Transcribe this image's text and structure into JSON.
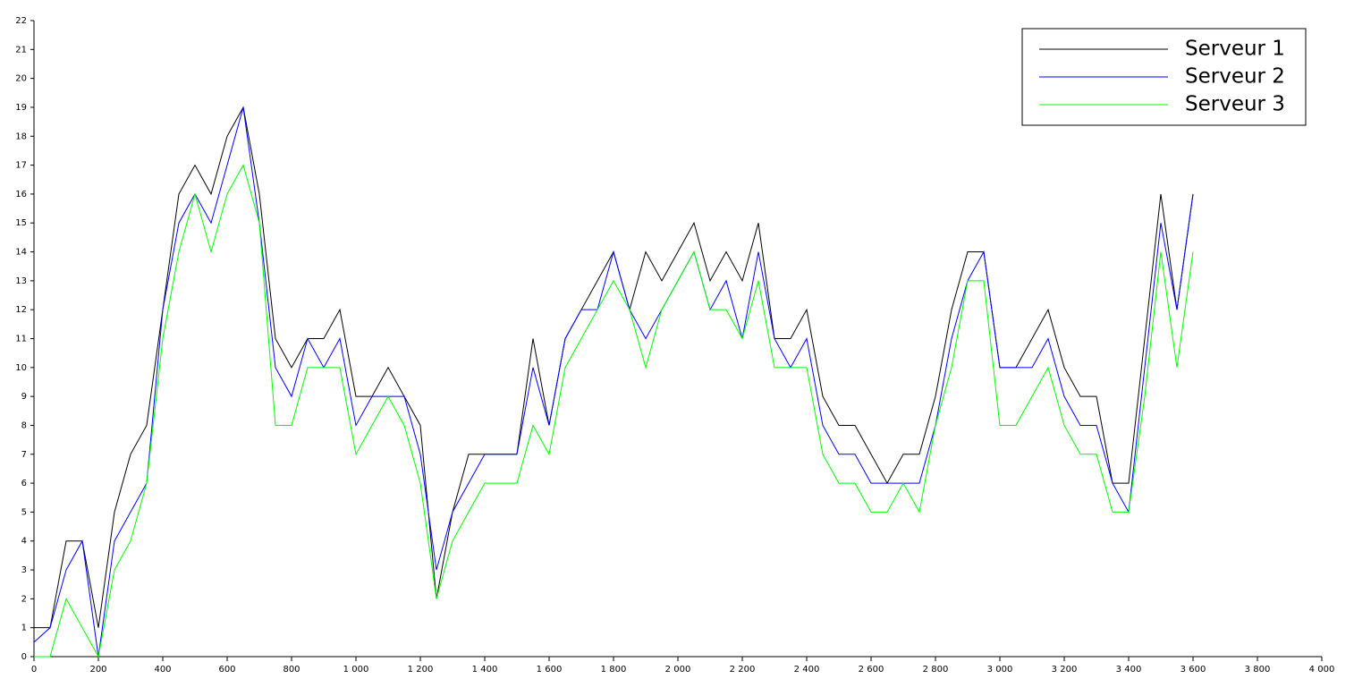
{
  "chart_data": {
    "type": "line",
    "x": [
      0,
      50,
      100,
      150,
      200,
      250,
      300,
      350,
      400,
      450,
      500,
      550,
      600,
      650,
      700,
      750,
      800,
      850,
      900,
      950,
      1000,
      1050,
      1100,
      1150,
      1200,
      1250,
      1300,
      1350,
      1400,
      1450,
      1500,
      1550,
      1600,
      1650,
      1700,
      1750,
      1800,
      1850,
      1900,
      1950,
      2000,
      2050,
      2100,
      2150,
      2200,
      2250,
      2300,
      2350,
      2400,
      2450,
      2500,
      2550,
      2600,
      2650,
      2700,
      2750,
      2800,
      2850,
      2900,
      2950,
      3000,
      3050,
      3100,
      3150,
      3200,
      3250,
      3300,
      3350,
      3400,
      3450,
      3500,
      3550,
      3600
    ],
    "series": [
      {
        "name": "Serveur 1",
        "color": "#000000",
        "values": [
          1,
          1,
          4,
          4,
          1,
          5,
          7,
          8,
          12,
          16,
          17,
          16,
          18,
          19,
          16,
          11,
          10,
          11,
          11,
          12,
          9,
          9,
          10,
          9,
          8,
          2,
          5,
          7,
          7,
          7,
          7,
          11,
          8,
          11,
          12,
          13,
          14,
          12,
          14,
          13,
          14,
          15,
          13,
          14,
          13,
          15,
          11,
          11,
          12,
          9,
          8,
          8,
          7,
          6,
          7,
          7,
          9,
          12,
          14,
          14,
          10,
          10,
          11,
          12,
          10,
          9,
          9,
          6,
          6,
          11,
          16,
          12,
          16
        ]
      },
      {
        "name": "Serveur 2",
        "color": "#0000ff",
        "values": [
          0.5,
          1,
          3,
          4,
          0,
          4,
          5,
          6,
          12,
          15,
          16,
          15,
          17,
          19,
          15,
          10,
          9,
          11,
          10,
          11,
          8,
          9,
          9,
          9,
          7,
          3,
          5,
          6,
          7,
          7,
          7,
          10,
          8,
          11,
          12,
          12,
          14,
          12,
          11,
          12,
          13,
          14,
          12,
          13,
          11,
          14,
          11,
          10,
          11,
          8,
          7,
          7,
          6,
          6,
          6,
          6,
          8,
          11,
          13,
          14,
          10,
          10,
          10,
          11,
          9,
          8,
          8,
          6,
          5,
          10,
          15,
          12,
          16
        ]
      },
      {
        "name": "Serveur 3",
        "color": "#00ff00",
        "values": [
          0,
          0,
          2,
          1,
          0,
          3,
          4,
          6,
          11,
          14,
          16,
          14,
          16,
          17,
          15,
          8,
          8,
          10,
          10,
          10,
          7,
          8,
          9,
          8,
          6,
          2,
          4,
          5,
          6,
          6,
          6,
          8,
          7,
          10,
          11,
          12,
          13,
          12,
          10,
          12,
          13,
          14,
          12,
          12,
          11,
          13,
          10,
          10,
          10,
          7,
          6,
          6,
          5,
          5,
          6,
          5,
          8,
          10,
          13,
          13,
          8,
          8,
          9,
          10,
          8,
          7,
          7,
          5,
          5,
          9,
          14,
          10,
          14
        ]
      }
    ],
    "xlim": [
      0,
      4000
    ],
    "xticks": [
      0,
      200,
      400,
      600,
      800,
      {
        "value": 1000,
        "label": "1 000"
      },
      {
        "value": 1200,
        "label": "1 200"
      },
      {
        "value": 1400,
        "label": "1 400"
      },
      {
        "value": 1600,
        "label": "1 600"
      },
      {
        "value": 1800,
        "label": "1 800"
      },
      {
        "value": 2000,
        "label": "2 000"
      },
      {
        "value": 2200,
        "label": "2 200"
      },
      {
        "value": 2400,
        "label": "2 400"
      },
      {
        "value": 2600,
        "label": "2 600"
      },
      {
        "value": 2800,
        "label": "2 800"
      },
      {
        "value": 3000,
        "label": "3 000"
      },
      {
        "value": 3200,
        "label": "3 200"
      },
      {
        "value": 3400,
        "label": "3 400"
      },
      {
        "value": 3600,
        "label": "3 600"
      },
      {
        "value": 3800,
        "label": "3 800"
      },
      {
        "value": 4000,
        "label": "4 000"
      }
    ],
    "ylim": [
      0,
      22
    ],
    "yticks": [
      0,
      1,
      2,
      3,
      4,
      5,
      6,
      7,
      8,
      9,
      10,
      11,
      12,
      13,
      14,
      15,
      16,
      17,
      18,
      19,
      20,
      21,
      22
    ],
    "legend": "upper-right"
  }
}
